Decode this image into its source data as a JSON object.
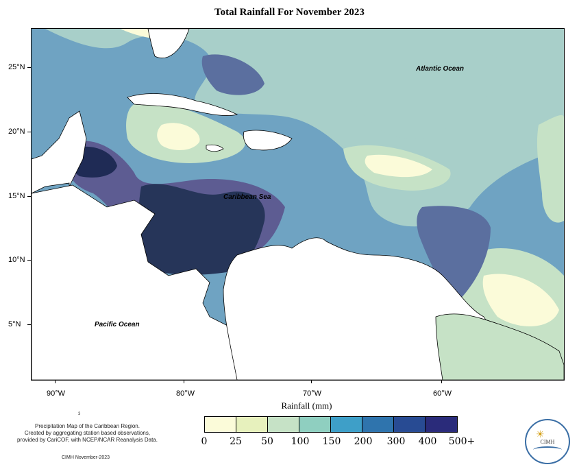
{
  "title": "Total Rainfall For November 2023",
  "map": {
    "y_axis_labels": [
      "25°N",
      "20°N",
      "15°N",
      "10°N",
      "5°N"
    ],
    "x_axis_labels": [
      "90°W",
      "80°W",
      "70°W",
      "60°W"
    ],
    "ocean_labels": {
      "atlantic": "Atlantic Ocean",
      "caribbean": "Caribbean Sea",
      "pacific": "Pacific Ocean"
    },
    "land_color": "#ffffff"
  },
  "legend": {
    "title": "Rainfall (mm)",
    "labels": [
      "0",
      "25",
      "50",
      "100",
      "150",
      "200",
      "300",
      "400",
      "500+"
    ],
    "colors": [
      "#fbfbd9",
      "#e7f1bd",
      "#c6e2c6",
      "#8fcfc0",
      "#3e9fc8",
      "#2f74ad",
      "#284b93",
      "#2a2b7a",
      "#14214d"
    ]
  },
  "credit": {
    "small_mark": "3",
    "line1": "Precipitation Map of the Caribbean Region.",
    "line2": "Created by aggregating station based observations,",
    "line3": "provided by CariCOF, with NCEP/NCAR Reanalysis Data.",
    "date": "CIMH November-2023"
  },
  "logo": {
    "name": "CIMH",
    "icon": "sun-icon"
  }
}
